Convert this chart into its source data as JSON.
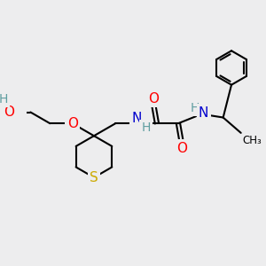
{
  "background_color": "#ededee",
  "bond_color": "#000000",
  "atom_colors": {
    "O": "#ff0000",
    "N": "#0000cd",
    "S": "#ccaa00",
    "H": "#5f9ea0",
    "C": "#000000"
  },
  "font_size": 10,
  "fig_size": [
    3.0,
    3.0
  ],
  "dpi": 100
}
